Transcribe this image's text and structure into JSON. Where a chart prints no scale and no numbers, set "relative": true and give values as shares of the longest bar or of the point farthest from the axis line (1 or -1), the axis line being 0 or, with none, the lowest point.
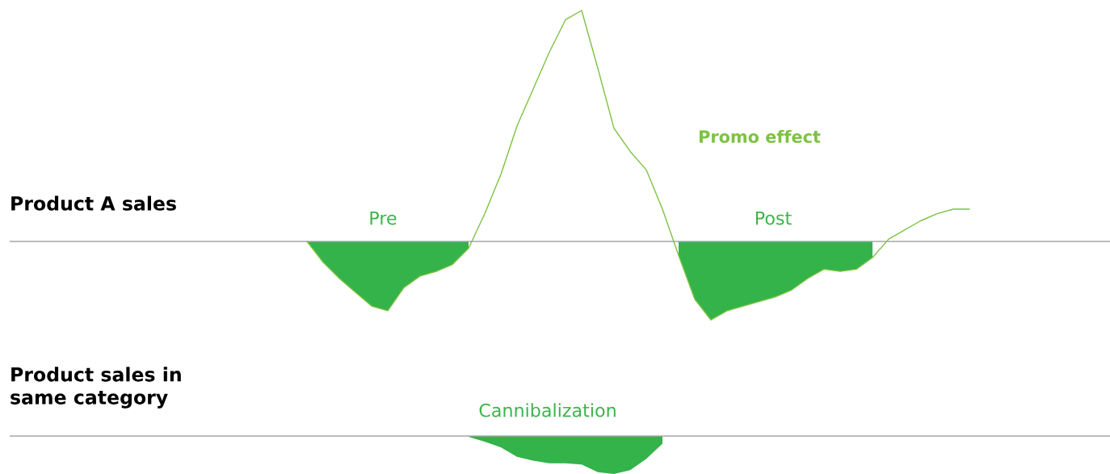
{
  "chart_data": [
    {
      "type": "line",
      "relative": true,
      "ylabel": "Product A sales",
      "annotations": [
        "Pre",
        "Post",
        "Promo effect"
      ],
      "categories": [
        null,
        null,
        null,
        null,
        null,
        null,
        null,
        null,
        null,
        null,
        null,
        null,
        null,
        null,
        null,
        null,
        null,
        null,
        null,
        null,
        null,
        null,
        null,
        null,
        null,
        null,
        null,
        null,
        null,
        null,
        null,
        null,
        null,
        null,
        null,
        null,
        null,
        null,
        null,
        null,
        null,
        null
      ],
      "series": [
        {
          "color": "#7dc242",
          "values": [
            0,
            -0.09,
            -0.16,
            -0.22,
            -0.28,
            -0.3,
            -0.2,
            -0.15,
            -0.13,
            -0.1,
            -0.03,
            0.12,
            0.29,
            0.5,
            0.66,
            0.82,
            0.96,
            1,
            0.75,
            0.49,
            0.39,
            0.31,
            0.14,
            -0.06,
            -0.25,
            -0.34,
            -0.3,
            -0.28,
            -0.26,
            -0.24,
            -0.21,
            -0.16,
            -0.12,
            -0.13,
            -0.12,
            -0.07,
            0.01,
            0.05,
            0.09,
            0.12,
            0.14,
            0.14
          ],
          "lower": [
            0,
            -0.09,
            -0.16,
            -0.22,
            -0.28,
            -0.3,
            -0.2,
            -0.15,
            -0.13,
            -0.1,
            -0.03,
            null,
            null,
            null,
            null,
            null,
            null,
            null,
            null,
            null,
            null,
            null,
            null,
            -0.06,
            -0.25,
            -0.34,
            -0.3,
            -0.28,
            -0.26,
            -0.24,
            -0.21,
            -0.16,
            -0.12,
            -0.13,
            -0.12,
            -0.07,
            null,
            null,
            null,
            null,
            null,
            null
          ],
          "upper": [
            0,
            0,
            0,
            0,
            0,
            0,
            0,
            0,
            0,
            0,
            0,
            null,
            null,
            null,
            null,
            null,
            null,
            null,
            null,
            null,
            null,
            null,
            null,
            0,
            0,
            0,
            0,
            0,
            0,
            0,
            0,
            0,
            0,
            0,
            0,
            0,
            null,
            null,
            null,
            null,
            null,
            null
          ]
        }
      ]
    },
    {
      "type": "area",
      "relative": true,
      "ylabel": "Product sales in\nsame category",
      "annotations": [
        "Cannibalization"
      ],
      "categories": [
        null,
        null,
        null,
        null,
        null,
        null,
        null,
        null,
        null,
        null,
        null,
        null,
        null,
        null,
        null,
        null,
        null,
        null,
        null,
        null,
        null,
        null,
        null,
        null,
        null,
        null,
        null,
        null,
        null,
        null,
        null,
        null,
        null,
        null,
        null,
        null,
        null,
        null,
        null,
        null,
        null,
        null
      ],
      "series": [
        {
          "color": "#33b34a",
          "values": [
            null,
            null,
            null,
            null,
            null,
            null,
            null,
            null,
            null,
            null,
            -0.02,
            -0.15,
            -0.3,
            -0.55,
            -0.65,
            -0.72,
            -0.72,
            -0.75,
            -0.95,
            -1,
            -0.9,
            -0.6,
            -0.2,
            null,
            null,
            null,
            null,
            null,
            null,
            null,
            null,
            null,
            null,
            null,
            null,
            null,
            null,
            null,
            null,
            null,
            null,
            null
          ]
        }
      ]
    }
  ]
}
